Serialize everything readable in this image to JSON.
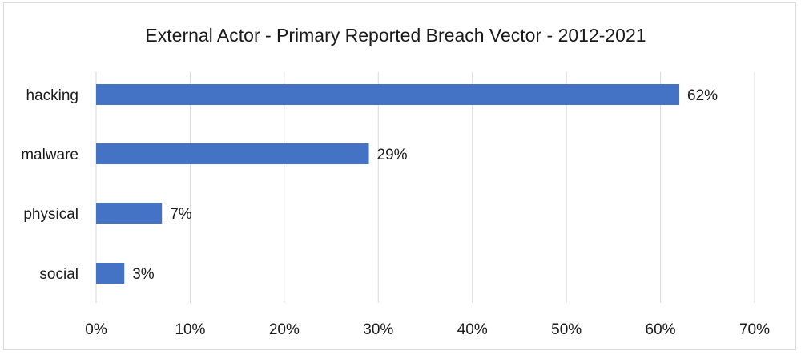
{
  "chart_data": {
    "type": "bar",
    "orientation": "horizontal",
    "title": "External Actor - Primary Reported Breach Vector - 2012-2021",
    "categories": [
      "hacking",
      "malware",
      "physical",
      "social"
    ],
    "values": [
      62,
      29,
      7,
      3
    ],
    "data_labels": [
      "62%",
      "29%",
      "7%",
      "3%"
    ],
    "xlim": [
      0,
      70
    ],
    "x_ticks": [
      0,
      10,
      20,
      30,
      40,
      50,
      60,
      70
    ],
    "x_tick_labels": [
      "0%",
      "10%",
      "20%",
      "30%",
      "40%",
      "50%",
      "60%",
      "70%"
    ],
    "grid": "vertical",
    "legend": "none",
    "bar_color": "#4472c4",
    "gridline_color": "#d9d9d9",
    "text_color": "#1a1a1a"
  }
}
